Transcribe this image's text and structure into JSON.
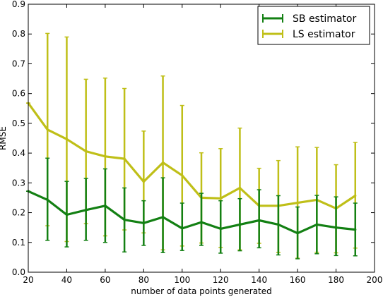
{
  "chart_data": {
    "type": "line",
    "xlabel": "number of data points generated",
    "ylabel": "RMSE",
    "xlim": [
      20,
      200
    ],
    "ylim": [
      0.0,
      0.9
    ],
    "xticks": [
      20,
      40,
      60,
      80,
      100,
      120,
      140,
      160,
      180,
      200
    ],
    "yticks": [
      0.0,
      0.1,
      0.2,
      0.3,
      0.4,
      0.5,
      0.6,
      0.7,
      0.8,
      0.9
    ],
    "xtick_labels": [
      "20",
      "40",
      "60",
      "80",
      "100",
      "120",
      "140",
      "160",
      "180",
      "200"
    ],
    "ytick_labels": [
      "0.0",
      "0.1",
      "0.2",
      "0.3",
      "0.4",
      "0.5",
      "0.6",
      "0.7",
      "0.8",
      "0.9"
    ],
    "grid": false,
    "legend_position": "top-right",
    "x": [
      20,
      30,
      40,
      50,
      60,
      70,
      80,
      90,
      100,
      110,
      120,
      130,
      140,
      150,
      160,
      170,
      180,
      190
    ],
    "series": [
      {
        "name": "SB estimator",
        "color": "#138013",
        "values": [
          0.272,
          0.243,
          0.193,
          0.209,
          0.223,
          0.176,
          0.165,
          0.185,
          0.147,
          0.168,
          0.146,
          0.16,
          0.174,
          0.16,
          0.131,
          0.16,
          0.15,
          0.143
        ],
        "err_low": [
          0.272,
          0.107,
          0.085,
          0.107,
          0.1,
          0.068,
          0.09,
          0.066,
          0.073,
          0.09,
          0.064,
          0.072,
          0.082,
          0.058,
          0.045,
          0.062,
          0.056,
          0.055
        ],
        "err_high": [
          0.272,
          0.383,
          0.305,
          0.315,
          0.347,
          0.283,
          0.24,
          0.317,
          0.232,
          0.265,
          0.24,
          0.247,
          0.277,
          0.257,
          0.219,
          0.258,
          0.253,
          0.232
        ]
      },
      {
        "name": "LS estimator",
        "color": "#bfbf18",
        "values": [
          0.568,
          0.479,
          0.447,
          0.406,
          0.389,
          0.381,
          0.304,
          0.368,
          0.325,
          0.25,
          0.248,
          0.283,
          0.223,
          0.223,
          0.233,
          0.243,
          0.214,
          0.257
        ],
        "err_low": [
          0.568,
          0.156,
          0.103,
          0.163,
          0.122,
          0.142,
          0.132,
          0.075,
          0.088,
          0.098,
          0.083,
          0.075,
          0.097,
          0.066,
          0.047,
          0.067,
          0.065,
          0.081
        ],
        "err_high": [
          0.568,
          0.802,
          0.79,
          0.648,
          0.652,
          0.617,
          0.474,
          0.659,
          0.56,
          0.401,
          0.415,
          0.484,
          0.349,
          0.375,
          0.421,
          0.419,
          0.361,
          0.436
        ]
      }
    ]
  }
}
